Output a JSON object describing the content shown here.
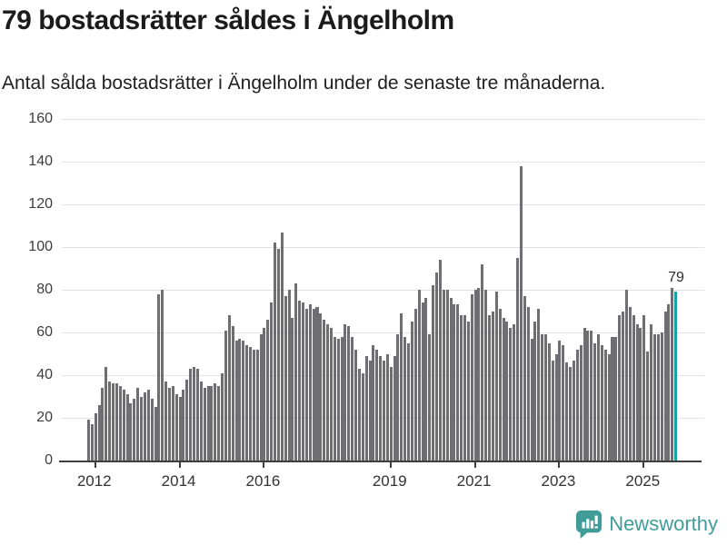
{
  "title": "79 bostadsrätter såldes i Ängelholm",
  "subtitle": "Antal sålda bostadsrätter i Ängelholm under de senaste tre månaderna.",
  "footer": {
    "brand": "Newsworthy"
  },
  "colors": {
    "bar": "#6f6e73",
    "highlight": "#14a2a2",
    "grid": "#e3e3e3",
    "axis": "#3f3f3f",
    "tick_text": "#3c3c3c",
    "title_text": "#1b1b1b",
    "brand_teal": "#3f9c99"
  },
  "chart_data": {
    "type": "bar",
    "title": "79 bostadsrätter såldes i Ängelholm",
    "subtitle": "Antal sålda bostadsrätter i Ängelholm under de senaste tre månaderna.",
    "x_interval": "month",
    "x_start": "2011-11",
    "x_end": "2025-10",
    "x_tick_labels": [
      "2012",
      "2014",
      "2016",
      "2019",
      "2021",
      "2023",
      "2025"
    ],
    "x_tick_month_indices": [
      2,
      26,
      50,
      86,
      110,
      134,
      158
    ],
    "ylim": [
      0,
      160
    ],
    "y_ticks": [
      0,
      20,
      40,
      60,
      80,
      100,
      120,
      140,
      160
    ],
    "grid": true,
    "legend": false,
    "highlight": {
      "index": 167,
      "label": "79",
      "value": 79
    },
    "values": [
      19,
      17,
      22,
      26,
      34,
      44,
      37,
      36,
      36,
      35,
      33,
      31,
      27,
      29,
      34,
      30,
      32,
      33,
      29,
      25,
      78,
      80,
      37,
      34,
      35,
      31,
      30,
      33,
      38,
      43,
      44,
      43,
      37,
      34,
      35,
      35,
      36,
      35,
      41,
      61,
      68,
      63,
      56,
      57,
      56,
      54,
      53,
      52,
      52,
      59,
      62,
      66,
      74,
      102,
      99,
      107,
      77,
      80,
      67,
      83,
      75,
      74,
      71,
      73,
      71,
      72,
      69,
      66,
      64,
      62,
      58,
      57,
      58,
      64,
      63,
      58,
      52,
      43,
      41,
      49,
      47,
      54,
      52,
      49,
      47,
      50,
      44,
      49,
      59,
      69,
      58,
      55,
      65,
      71,
      80,
      74,
      76,
      59,
      82,
      88,
      94,
      80,
      80,
      76,
      73,
      73,
      68,
      68,
      65,
      78,
      80,
      81,
      92,
      80,
      68,
      70,
      79,
      71,
      67,
      65,
      62,
      64,
      95,
      138,
      77,
      72,
      57,
      65,
      71,
      59,
      59,
      55,
      47,
      50,
      56,
      54,
      46,
      44,
      47,
      52,
      54,
      62,
      61,
      61,
      55,
      59,
      54,
      52,
      50,
      58,
      58,
      68,
      70,
      80,
      72,
      68,
      64,
      62,
      68,
      51,
      64,
      59,
      59,
      60,
      70,
      73,
      81,
      79
    ]
  }
}
